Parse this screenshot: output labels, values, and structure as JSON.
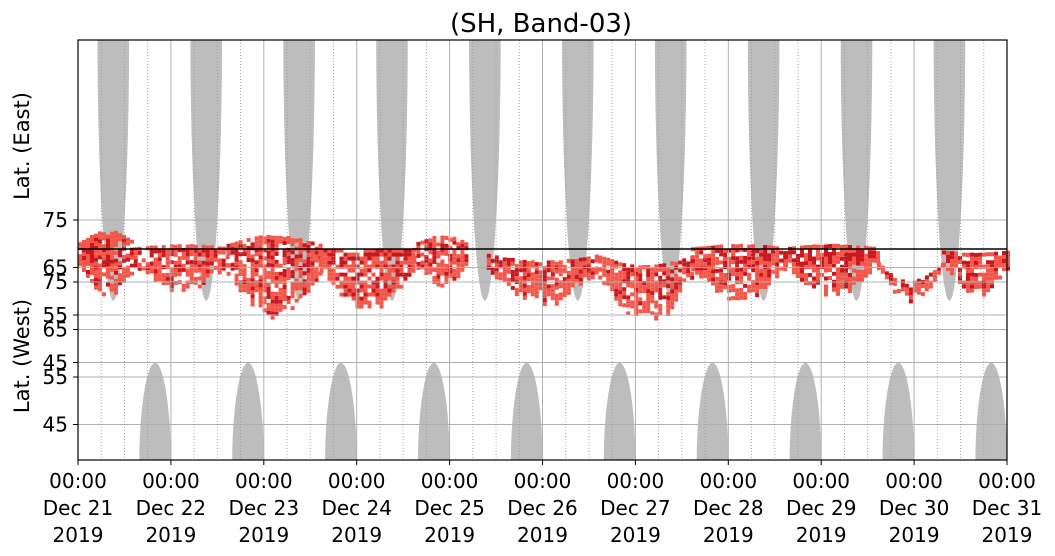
{
  "chart_data": {
    "type": "heatmap",
    "title": "(SH, Band-03)",
    "ylabel_top": "Lat. (East)",
    "ylabel_bottom": "Lat. (West)",
    "grid": true,
    "x_range": [
      "Dec 21 2019 00:00",
      "Dec 31 2019 00:00"
    ],
    "x_ticks": [
      {
        "time": "00:00",
        "date": "Dec 21",
        "year": "2019"
      },
      {
        "time": "00:00",
        "date": "Dec 22",
        "year": "2019"
      },
      {
        "time": "00:00",
        "date": "Dec 23",
        "year": "2019"
      },
      {
        "time": "00:00",
        "date": "Dec 24",
        "year": "2019"
      },
      {
        "time": "00:00",
        "date": "Dec 25",
        "year": "2019"
      },
      {
        "time": "00:00",
        "date": "Dec 26",
        "year": "2019"
      },
      {
        "time": "00:00",
        "date": "Dec 27",
        "year": "2019"
      },
      {
        "time": "00:00",
        "date": "Dec 28",
        "year": "2019"
      },
      {
        "time": "00:00",
        "date": "Dec 29",
        "year": "2019"
      },
      {
        "time": "00:00",
        "date": "Dec 30",
        "year": "2019"
      },
      {
        "time": "00:00",
        "date": "Dec 31",
        "year": "2019"
      }
    ],
    "y_ticks_east": [
      "45",
      "55",
      "65",
      "75"
    ],
    "y_ticks_west": [
      "75",
      "65",
      "55",
      "45"
    ],
    "colors": {
      "night_gray": "#bdbdbd",
      "light_red": "#f4574a",
      "dark_red": "#c8171e",
      "grid": "#b0b0b0"
    },
    "night_lobes_east": [
      {
        "center_day": 0.38,
        "halfwidth_day": 0.17
      },
      {
        "center_day": 1.38,
        "halfwidth_day": 0.17
      },
      {
        "center_day": 2.38,
        "halfwidth_day": 0.17
      },
      {
        "center_day": 3.38,
        "halfwidth_day": 0.17
      },
      {
        "center_day": 4.38,
        "halfwidth_day": 0.17
      },
      {
        "center_day": 5.38,
        "halfwidth_day": 0.17
      },
      {
        "center_day": 6.38,
        "halfwidth_day": 0.17
      },
      {
        "center_day": 7.38,
        "halfwidth_day": 0.17
      },
      {
        "center_day": 8.38,
        "halfwidth_day": 0.17
      },
      {
        "center_day": 9.38,
        "halfwidth_day": 0.17
      }
    ],
    "night_lobes_west": [
      {
        "center_day": 0.83,
        "halfwidth_day": 0.17
      },
      {
        "center_day": 1.83,
        "halfwidth_day": 0.17
      },
      {
        "center_day": 2.83,
        "halfwidth_day": 0.17
      },
      {
        "center_day": 3.83,
        "halfwidth_day": 0.17
      },
      {
        "center_day": 4.83,
        "halfwidth_day": 0.17
      },
      {
        "center_day": 5.83,
        "halfwidth_day": 0.17
      },
      {
        "center_day": 6.83,
        "halfwidth_day": 0.17
      },
      {
        "center_day": 7.83,
        "halfwidth_day": 0.17
      },
      {
        "center_day": 8.83,
        "halfwidth_day": 0.17
      },
      {
        "center_day": 9.83,
        "halfwidth_day": 0.17
      }
    ],
    "night_lobe_tip_latitude": 58,
    "activity_regions": [
      {
        "start_day": 0.0,
        "end_day": 0.6,
        "east_lat_min": 73,
        "west_lat_min": 72,
        "level": "mixed"
      },
      {
        "start_day": 0.6,
        "end_day": 1.6,
        "east_lat_min": 70,
        "west_lat_min": 73,
        "level": "mixed"
      },
      {
        "start_day": 1.6,
        "end_day": 2.6,
        "east_lat_min": 72,
        "west_lat_min": 67,
        "level": "mixed"
      },
      {
        "start_day": 2.6,
        "end_day": 3.6,
        "east_lat_min": 69,
        "west_lat_min": 69,
        "level": "mixed"
      },
      {
        "start_day": 3.6,
        "end_day": 4.2,
        "east_lat_min": 72,
        "west_lat_min": 74,
        "level": "mixed"
      },
      {
        "start_day": 4.4,
        "end_day": 5.6,
        "east_lat_min": 66,
        "west_lat_min": 70,
        "level": "mixed"
      },
      {
        "start_day": 5.6,
        "end_day": 6.6,
        "east_lat_min": 65,
        "west_lat_min": 66,
        "level": "mixed"
      },
      {
        "start_day": 6.6,
        "end_day": 7.6,
        "east_lat_min": 70,
        "west_lat_min": 71,
        "level": "mixed"
      },
      {
        "start_day": 7.6,
        "end_day": 8.6,
        "east_lat_min": 70,
        "west_lat_min": 72,
        "level": "mixed"
      },
      {
        "start_day": 8.6,
        "end_day": 9.3,
        "east_lat_min": 61,
        "west_lat_min": 71,
        "level": "mixed"
      },
      {
        "start_day": 9.3,
        "end_day": 10.0,
        "east_lat_min": 68,
        "west_lat_min": 72,
        "level": "mixed"
      }
    ]
  }
}
